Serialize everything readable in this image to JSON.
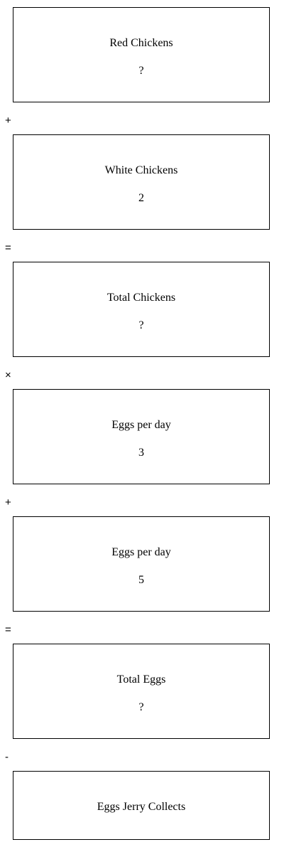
{
  "steps": [
    {
      "label": "Red Chickens",
      "value": "?"
    },
    {
      "label": "White Chickens",
      "value": "2"
    },
    {
      "label": "Total Chickens",
      "value": "?"
    },
    {
      "label": "Eggs per day",
      "value": "3"
    },
    {
      "label": "Eggs per day",
      "value": "5"
    },
    {
      "label": "Total Eggs",
      "value": "?"
    },
    {
      "label": "Eggs Jerry Collects",
      "value": ""
    }
  ],
  "operators": [
    "+",
    "=",
    "×",
    "+",
    "=",
    "-"
  ]
}
